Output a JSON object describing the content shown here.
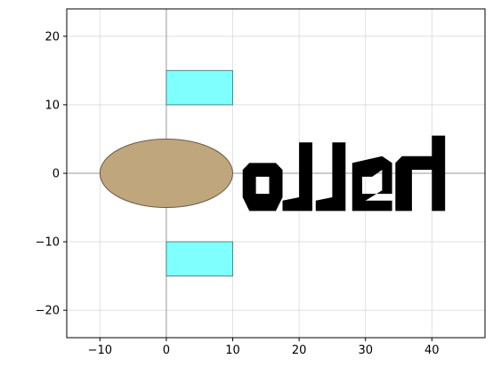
{
  "chart_data": {
    "type": "scatter",
    "title": "",
    "xlabel": "",
    "ylabel": "",
    "xlim": [
      -15,
      48
    ],
    "ylim": [
      -24,
      24
    ],
    "xticks": [
      -10,
      0,
      10,
      20,
      30,
      40
    ],
    "xtick_labels": [
      "−10",
      "0",
      "10",
      "20",
      "30",
      "40"
    ],
    "yticks": [
      -20,
      -10,
      0,
      10,
      20
    ],
    "ytick_labels": [
      "−20",
      "−10",
      "0",
      "10",
      "20"
    ],
    "grid": true,
    "axis_lines": {
      "x": 0,
      "y": 0
    },
    "shapes": [
      {
        "name": "ellipse-body",
        "kind": "ellipse",
        "cx": 0,
        "cy": 0,
        "rx": 10,
        "ry": 5,
        "fill": "#c0a67c",
        "stroke": "#6b5c4b"
      },
      {
        "name": "rectangle-top",
        "kind": "rect",
        "x0": 0,
        "y0": 10,
        "x1": 10,
        "y1": 15,
        "fill": "#80ffff",
        "stroke": "#4d8a8a"
      },
      {
        "name": "rectangle-bottom",
        "kind": "rect",
        "x0": 0,
        "y0": -15,
        "x1": 10,
        "y1": -10,
        "fill": "#80ffff",
        "stroke": "#4d8a8a"
      }
    ],
    "glyphs": [
      {
        "name": "glyph-o",
        "fill": "#000000",
        "points": [
          [
            11.5,
            0.5
          ],
          [
            12.5,
            1.5
          ],
          [
            16.5,
            1.5
          ],
          [
            17.5,
            0.5
          ],
          [
            17.5,
            -3.5
          ],
          [
            16.5,
            -5.5
          ],
          [
            12.5,
            -5.5
          ],
          [
            11.5,
            -3.5
          ]
        ],
        "hole": [
          [
            13.5,
            -0.5
          ],
          [
            15.5,
            -0.5
          ],
          [
            15.5,
            -3
          ],
          [
            13.5,
            -3
          ]
        ]
      },
      {
        "name": "glyph-l1",
        "fill": "#000000",
        "points": [
          [
            20,
            4.5
          ],
          [
            22,
            4.5
          ],
          [
            22,
            -5.5
          ],
          [
            17.5,
            -5.5
          ],
          [
            17.5,
            -4
          ],
          [
            20,
            -3.5
          ]
        ]
      },
      {
        "name": "glyph-l2",
        "fill": "#000000",
        "points": [
          [
            25,
            4.5
          ],
          [
            27,
            4.5
          ],
          [
            27,
            -5.5
          ],
          [
            22.5,
            -5.5
          ],
          [
            22.5,
            -4
          ],
          [
            25,
            -3.5
          ]
        ]
      },
      {
        "name": "glyph-e",
        "fill": "#000000",
        "points": [
          [
            28,
            1.5
          ],
          [
            32.5,
            2.5
          ],
          [
            34,
            1.5
          ],
          [
            34,
            -3
          ],
          [
            29.5,
            -3
          ],
          [
            29.5,
            -0.5
          ],
          [
            31,
            -0.5
          ],
          [
            32.5,
            0.5
          ],
          [
            32.5,
            -2.5
          ],
          [
            30,
            -4
          ],
          [
            34,
            -4
          ],
          [
            34,
            -5.5
          ],
          [
            28,
            -5.5
          ]
        ]
      },
      {
        "name": "glyph-h",
        "fill": "#000000",
        "points": [
          [
            34.5,
            1.5
          ],
          [
            35.5,
            2.5
          ],
          [
            40,
            2.5
          ],
          [
            40,
            5.5
          ],
          [
            42,
            5.5
          ],
          [
            42,
            -5.5
          ],
          [
            40,
            -5.5
          ],
          [
            40,
            0.5
          ],
          [
            37,
            0.5
          ],
          [
            37,
            -5.5
          ],
          [
            34.5,
            -5.5
          ]
        ]
      }
    ]
  }
}
